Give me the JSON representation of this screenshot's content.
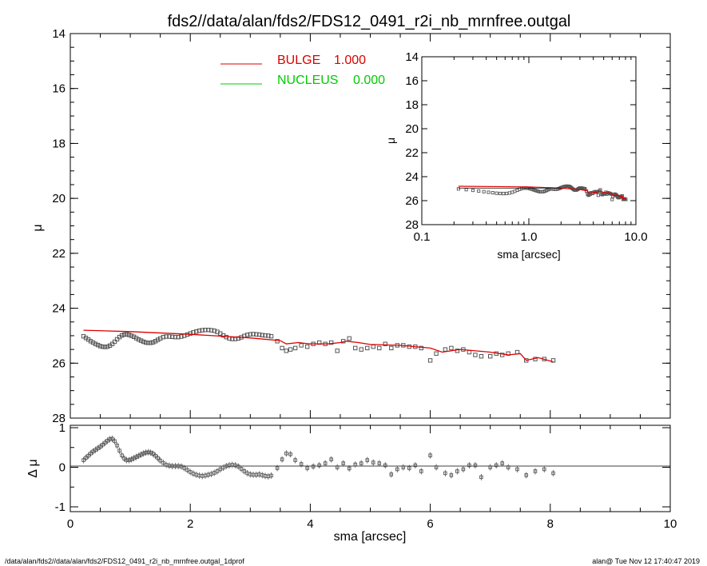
{
  "title": "fds2//data/alan/fds2/FDS12_0491_r2i_nb_mrnfree.outgal",
  "footer_left": "/data/alan/fds2//data/alan/fds2/FDS12_0491_r2i_nb_mrnfree.outgal_1dprof",
  "footer_right": "alan@  Tue Nov 12 17:40:47 2019",
  "colors": {
    "bulge": "#dd0000",
    "nucleus": "#00cc00",
    "data": "#555555",
    "axes": "#000000"
  },
  "chart_data": [
    {
      "type": "scatter",
      "panel": "main",
      "xlabel": "sma [arcsec]",
      "ylabel": "μ",
      "xlim": [
        0,
        10
      ],
      "ylim": [
        28,
        14
      ],
      "xticks": [
        "0",
        "2",
        "4",
        "6",
        "8",
        "10"
      ],
      "yticks": [
        "14",
        "16",
        "18",
        "20",
        "22",
        "24",
        "26",
        "28"
      ],
      "legend": {
        "placement": "top-left",
        "entries": [
          {
            "name": "BULGE",
            "value": "1.000",
            "color": "#dd0000"
          },
          {
            "name": "NUCLEUS",
            "value": "0.000",
            "color": "#00cc00"
          }
        ]
      },
      "series": [
        {
          "name": "data",
          "x": [
            0.22,
            0.26,
            0.3,
            0.34,
            0.38,
            0.42,
            0.46,
            0.5,
            0.54,
            0.58,
            0.62,
            0.66,
            0.7,
            0.74,
            0.78,
            0.82,
            0.86,
            0.9,
            0.94,
            0.98,
            1.02,
            1.06,
            1.1,
            1.14,
            1.18,
            1.22,
            1.26,
            1.3,
            1.34,
            1.38,
            1.42,
            1.46,
            1.5,
            1.55,
            1.6,
            1.65,
            1.7,
            1.75,
            1.8,
            1.85,
            1.9,
            1.95,
            2.0,
            2.05,
            2.1,
            2.15,
            2.2,
            2.25,
            2.3,
            2.35,
            2.4,
            2.45,
            2.5,
            2.55,
            2.6,
            2.65,
            2.7,
            2.75,
            2.8,
            2.85,
            2.9,
            2.95,
            3.0,
            3.05,
            3.1,
            3.15,
            3.2,
            3.25,
            3.3,
            3.35,
            3.45,
            3.53,
            3.6,
            3.67,
            3.75,
            3.85,
            3.95,
            4.05,
            4.15,
            4.25,
            4.35,
            4.45,
            4.55,
            4.65,
            4.75,
            4.85,
            4.95,
            5.05,
            5.15,
            5.25,
            5.35,
            5.45,
            5.55,
            5.65,
            5.75,
            5.85,
            6.0,
            6.1,
            6.25,
            6.35,
            6.45,
            6.55,
            6.65,
            6.75,
            6.85,
            7.0,
            7.1,
            7.2,
            7.3,
            7.45,
            7.6,
            7.75,
            7.9,
            8.05
          ],
          "y": [
            25.02,
            25.08,
            25.14,
            25.2,
            25.25,
            25.3,
            25.34,
            25.38,
            25.4,
            25.41,
            25.4,
            25.36,
            25.3,
            25.22,
            25.13,
            25.05,
            24.99,
            24.96,
            24.95,
            24.97,
            25.0,
            25.04,
            25.09,
            25.14,
            25.18,
            25.22,
            25.25,
            25.26,
            25.26,
            25.24,
            25.2,
            25.15,
            25.1,
            25.05,
            25.03,
            25.03,
            25.04,
            25.05,
            25.05,
            25.03,
            25.0,
            24.96,
            24.92,
            24.88,
            24.85,
            24.82,
            24.8,
            24.79,
            24.79,
            24.8,
            24.82,
            24.86,
            24.92,
            24.99,
            25.05,
            25.1,
            25.12,
            25.12,
            25.1,
            25.06,
            25.01,
            24.97,
            24.95,
            24.94,
            24.95,
            24.96,
            24.98,
            24.99,
            25.0,
            25.02,
            25.2,
            25.45,
            25.55,
            25.5,
            25.45,
            25.35,
            25.4,
            25.3,
            25.25,
            25.3,
            25.25,
            25.55,
            25.2,
            25.1,
            25.45,
            25.5,
            25.45,
            25.4,
            25.45,
            25.3,
            25.45,
            25.35,
            25.35,
            25.4,
            25.4,
            25.45,
            25.9,
            25.65,
            25.5,
            25.45,
            25.55,
            25.5,
            25.6,
            25.7,
            25.75,
            25.75,
            25.65,
            25.7,
            25.65,
            25.6,
            25.9,
            25.85,
            25.85,
            25.9
          ]
        },
        {
          "name": "BULGE",
          "x": [
            0.22,
            1.0,
            2.0,
            3.0,
            3.5,
            3.6,
            3.8,
            4.0,
            4.3,
            4.5,
            4.6,
            4.8,
            5.0,
            5.5,
            6.0,
            6.2,
            6.5,
            7.0,
            7.3,
            7.5,
            7.6,
            7.8,
            8.05
          ],
          "y": [
            24.8,
            24.85,
            24.95,
            25.08,
            25.18,
            25.3,
            25.25,
            25.3,
            25.3,
            25.25,
            25.2,
            25.25,
            25.32,
            25.35,
            25.45,
            25.6,
            25.5,
            25.6,
            25.7,
            25.65,
            25.9,
            25.8,
            25.95
          ]
        }
      ]
    },
    {
      "type": "line",
      "panel": "inset",
      "xlabel": "sma [arcsec]",
      "ylabel": "μ",
      "xscale": "log",
      "xlim": [
        0.1,
        10.0
      ],
      "ylim": [
        28,
        14
      ],
      "xticks": [
        "0.1",
        "1.0",
        "10.0"
      ],
      "yticks": [
        "14",
        "16",
        "18",
        "20",
        "22",
        "24",
        "26",
        "28"
      ]
    },
    {
      "type": "scatter",
      "panel": "residual",
      "ylabel": "Δ μ",
      "xlim": [
        0,
        10
      ],
      "ylim": [
        -1,
        1
      ],
      "yticks": [
        "1",
        "0",
        "-1"
      ],
      "series": [
        {
          "name": "residual",
          "x": [
            0.22,
            0.26,
            0.3,
            0.34,
            0.38,
            0.42,
            0.46,
            0.5,
            0.54,
            0.58,
            0.62,
            0.66,
            0.7,
            0.74,
            0.78,
            0.82,
            0.86,
            0.9,
            0.94,
            0.98,
            1.02,
            1.06,
            1.1,
            1.14,
            1.18,
            1.22,
            1.26,
            1.3,
            1.34,
            1.38,
            1.42,
            1.46,
            1.5,
            1.55,
            1.6,
            1.65,
            1.7,
            1.75,
            1.8,
            1.85,
            1.9,
            1.95,
            2.0,
            2.05,
            2.1,
            2.15,
            2.2,
            2.25,
            2.3,
            2.35,
            2.4,
            2.45,
            2.5,
            2.55,
            2.6,
            2.65,
            2.7,
            2.75,
            2.8,
            2.85,
            2.9,
            2.95,
            3.0,
            3.05,
            3.1,
            3.15,
            3.2,
            3.25,
            3.3,
            3.35,
            3.45,
            3.53,
            3.6,
            3.67,
            3.75,
            3.85,
            3.95,
            4.05,
            4.15,
            4.25,
            4.35,
            4.45,
            4.55,
            4.65,
            4.75,
            4.85,
            4.95,
            5.05,
            5.15,
            5.25,
            5.35,
            5.45,
            5.55,
            5.65,
            5.75,
            5.85,
            6.0,
            6.1,
            6.25,
            6.35,
            6.45,
            6.55,
            6.65,
            6.75,
            6.85,
            7.0,
            7.1,
            7.2,
            7.3,
            7.45,
            7.6,
            7.75,
            7.9,
            8.05
          ],
          "y": [
            0.18,
            0.24,
            0.29,
            0.35,
            0.4,
            0.44,
            0.48,
            0.52,
            0.57,
            0.62,
            0.67,
            0.71,
            0.72,
            0.66,
            0.55,
            0.42,
            0.3,
            0.22,
            0.18,
            0.18,
            0.2,
            0.23,
            0.26,
            0.29,
            0.32,
            0.35,
            0.37,
            0.38,
            0.37,
            0.34,
            0.29,
            0.23,
            0.17,
            0.11,
            0.06,
            0.04,
            0.03,
            0.03,
            0.03,
            0.02,
            -0.02,
            -0.07,
            -0.12,
            -0.16,
            -0.19,
            -0.21,
            -0.22,
            -0.21,
            -0.19,
            -0.17,
            -0.14,
            -0.1,
            -0.05,
            -0.01,
            0.03,
            0.05,
            0.06,
            0.05,
            0.02,
            -0.04,
            -0.1,
            -0.15,
            -0.18,
            -0.19,
            -0.19,
            -0.18,
            -0.2,
            -0.22,
            -0.23,
            -0.21,
            -0.02,
            0.2,
            0.35,
            0.33,
            0.18,
            0.08,
            -0.02,
            0.02,
            0.05,
            0.1,
            0.2,
            0.0,
            0.1,
            -0.03,
            0.07,
            0.1,
            0.18,
            0.12,
            0.1,
            0.05,
            -0.18,
            -0.05,
            0.0,
            -0.02,
            0.05,
            -0.1,
            0.3,
            0.0,
            -0.15,
            -0.2,
            -0.1,
            -0.05,
            0.05,
            0.05,
            -0.25,
            0.0,
            0.05,
            0.1,
            0.0,
            -0.05,
            -0.2,
            -0.1,
            -0.05,
            -0.15
          ]
        }
      ]
    }
  ]
}
